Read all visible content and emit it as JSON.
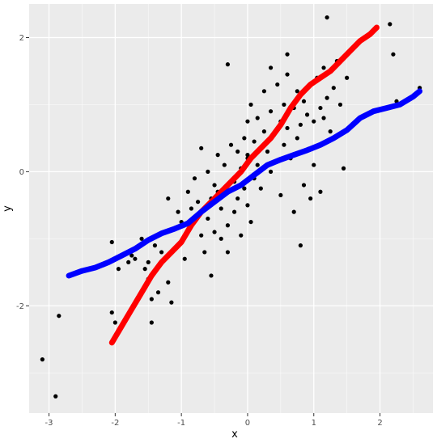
{
  "chart_data": {
    "type": "scatter",
    "title": "",
    "xlabel": "x",
    "ylabel": "y",
    "xlim": [
      -3.3,
      2.8
    ],
    "ylim": [
      -3.6,
      2.5
    ],
    "x_ticks": [
      -3,
      -2,
      -1,
      0,
      1,
      2
    ],
    "y_ticks": [
      -2,
      0,
      2
    ],
    "grid": true,
    "legend": "none",
    "colors": {
      "panel": "#ebebeb",
      "grid_major": "#ffffff",
      "points": "#000000",
      "red_line": "#ff0000",
      "blue_line": "#0000ff"
    },
    "points": [
      [
        -3.1,
        -2.8
      ],
      [
        -2.9,
        -3.35
      ],
      [
        -2.85,
        -2.15
      ],
      [
        -2.05,
        -2.1
      ],
      [
        -2.05,
        -1.05
      ],
      [
        -2.0,
        -2.25
      ],
      [
        -1.95,
        -1.45
      ],
      [
        -1.8,
        -1.35
      ],
      [
        -1.75,
        -1.25
      ],
      [
        -1.7,
        -1.3
      ],
      [
        -1.6,
        -1.0
      ],
      [
        -1.55,
        -1.45
      ],
      [
        -1.5,
        -1.35
      ],
      [
        -1.5,
        -1.6
      ],
      [
        -1.45,
        -2.25
      ],
      [
        -1.45,
        -1.9
      ],
      [
        -1.4,
        -1.1
      ],
      [
        -1.35,
        -1.8
      ],
      [
        -1.3,
        -1.2
      ],
      [
        -1.25,
        -1.3
      ],
      [
        -1.2,
        -1.65
      ],
      [
        -1.15,
        -1.95
      ],
      [
        -1.1,
        -0.85
      ],
      [
        -1.05,
        -0.6
      ],
      [
        -1.0,
        -0.75
      ],
      [
        -0.95,
        -1.3
      ],
      [
        -0.9,
        -0.3
      ],
      [
        -0.85,
        -0.55
      ],
      [
        -0.8,
        -0.1
      ],
      [
        -0.75,
        -0.45
      ],
      [
        -0.7,
        -0.95
      ],
      [
        -0.65,
        -1.2
      ],
      [
        -0.6,
        0.0
      ],
      [
        -0.6,
        -0.7
      ],
      [
        -0.55,
        -0.4
      ],
      [
        -0.55,
        -1.55
      ],
      [
        -0.5,
        -0.2
      ],
      [
        -0.5,
        -0.9
      ],
      [
        -0.45,
        0.25
      ],
      [
        -0.45,
        -0.3
      ],
      [
        -0.4,
        -0.55
      ],
      [
        -0.4,
        -1.0
      ],
      [
        -0.35,
        0.1
      ],
      [
        -0.3,
        -0.8
      ],
      [
        -0.3,
        -1.2
      ],
      [
        -0.25,
        0.4
      ],
      [
        -0.2,
        -0.15
      ],
      [
        -0.2,
        -0.6
      ],
      [
        -0.15,
        0.3
      ],
      [
        -0.15,
        -0.4
      ],
      [
        -0.1,
        0.05
      ],
      [
        -0.1,
        -0.95
      ],
      [
        -0.05,
        0.5
      ],
      [
        -0.05,
        -0.25
      ],
      [
        0.0,
        0.75
      ],
      [
        0.0,
        0.2
      ],
      [
        0.0,
        -0.5
      ],
      [
        0.05,
        1.0
      ],
      [
        0.05,
        -0.75
      ],
      [
        0.1,
        0.45
      ],
      [
        0.1,
        -0.1
      ],
      [
        0.15,
        0.8
      ],
      [
        0.15,
        0.1
      ],
      [
        0.2,
        -0.25
      ],
      [
        0.25,
        0.6
      ],
      [
        0.25,
        1.2
      ],
      [
        0.3,
        0.3
      ],
      [
        0.35,
        0.9
      ],
      [
        0.35,
        0.0
      ],
      [
        0.4,
        0.55
      ],
      [
        0.45,
        1.3
      ],
      [
        0.45,
        0.15
      ],
      [
        0.5,
        0.75
      ],
      [
        0.5,
        -0.35
      ],
      [
        0.55,
        1.0
      ],
      [
        0.55,
        0.4
      ],
      [
        0.6,
        1.45
      ],
      [
        0.6,
        0.65
      ],
      [
        0.65,
        0.2
      ],
      [
        0.7,
        0.95
      ],
      [
        0.7,
        -0.6
      ],
      [
        0.75,
        1.2
      ],
      [
        0.75,
        0.5
      ],
      [
        0.8,
        0.7
      ],
      [
        0.8,
        -1.1
      ],
      [
        0.85,
        1.05
      ],
      [
        0.85,
        -0.2
      ],
      [
        0.9,
        0.85
      ],
      [
        0.95,
        1.3
      ],
      [
        0.95,
        -0.4
      ],
      [
        1.0,
        0.75
      ],
      [
        1.0,
        0.1
      ],
      [
        1.05,
        1.4
      ],
      [
        1.1,
        0.95
      ],
      [
        1.1,
        -0.3
      ],
      [
        1.15,
        1.55
      ],
      [
        1.15,
        0.8
      ],
      [
        1.2,
        2.3
      ],
      [
        1.2,
        1.1
      ],
      [
        1.25,
        0.6
      ],
      [
        1.3,
        1.25
      ],
      [
        1.35,
        1.65
      ],
      [
        1.4,
        1.0
      ],
      [
        1.45,
        0.05
      ],
      [
        1.5,
        1.4
      ],
      [
        1.55,
        1.8
      ],
      [
        1.6,
        0.7
      ],
      [
        2.15,
        2.2
      ],
      [
        2.2,
        1.75
      ],
      [
        2.25,
        1.05
      ],
      [
        2.6,
        1.25
      ],
      [
        -0.3,
        1.6
      ],
      [
        0.0,
        0.25
      ],
      [
        -0.7,
        0.35
      ],
      [
        -1.2,
        -0.4
      ],
      [
        0.6,
        1.75
      ],
      [
        0.35,
        1.55
      ]
    ],
    "series": [
      {
        "color": "#ff0000",
        "x": [
          -2.05,
          -1.9,
          -1.75,
          -1.6,
          -1.45,
          -1.3,
          -1.15,
          -1.0,
          -0.85,
          -0.7,
          -0.55,
          -0.4,
          -0.25,
          -0.1,
          0.05,
          0.2,
          0.35,
          0.5,
          0.65,
          0.8,
          0.95,
          1.1,
          1.25,
          1.4,
          1.55,
          1.7,
          1.85,
          1.95
        ],
        "y": [
          -2.55,
          -2.3,
          -2.05,
          -1.8,
          -1.55,
          -1.35,
          -1.2,
          -1.05,
          -0.8,
          -0.6,
          -0.45,
          -0.3,
          -0.15,
          0.0,
          0.2,
          0.35,
          0.5,
          0.7,
          0.95,
          1.15,
          1.3,
          1.4,
          1.5,
          1.65,
          1.8,
          1.95,
          2.05,
          2.15
        ]
      },
      {
        "color": "#0000ff",
        "x": [
          -2.7,
          -2.5,
          -2.3,
          -2.1,
          -1.9,
          -1.7,
          -1.5,
          -1.3,
          -1.1,
          -0.9,
          -0.7,
          -0.5,
          -0.3,
          -0.1,
          0.1,
          0.3,
          0.5,
          0.7,
          0.9,
          1.1,
          1.3,
          1.5,
          1.7,
          1.9,
          2.1,
          2.3,
          2.5,
          2.6
        ],
        "y": [
          -1.55,
          -1.48,
          -1.43,
          -1.35,
          -1.25,
          -1.15,
          -1.02,
          -0.92,
          -0.85,
          -0.77,
          -0.6,
          -0.45,
          -0.3,
          -0.2,
          -0.05,
          0.1,
          0.18,
          0.25,
          0.32,
          0.4,
          0.5,
          0.62,
          0.8,
          0.9,
          0.95,
          1.0,
          1.12,
          1.2
        ]
      }
    ]
  }
}
